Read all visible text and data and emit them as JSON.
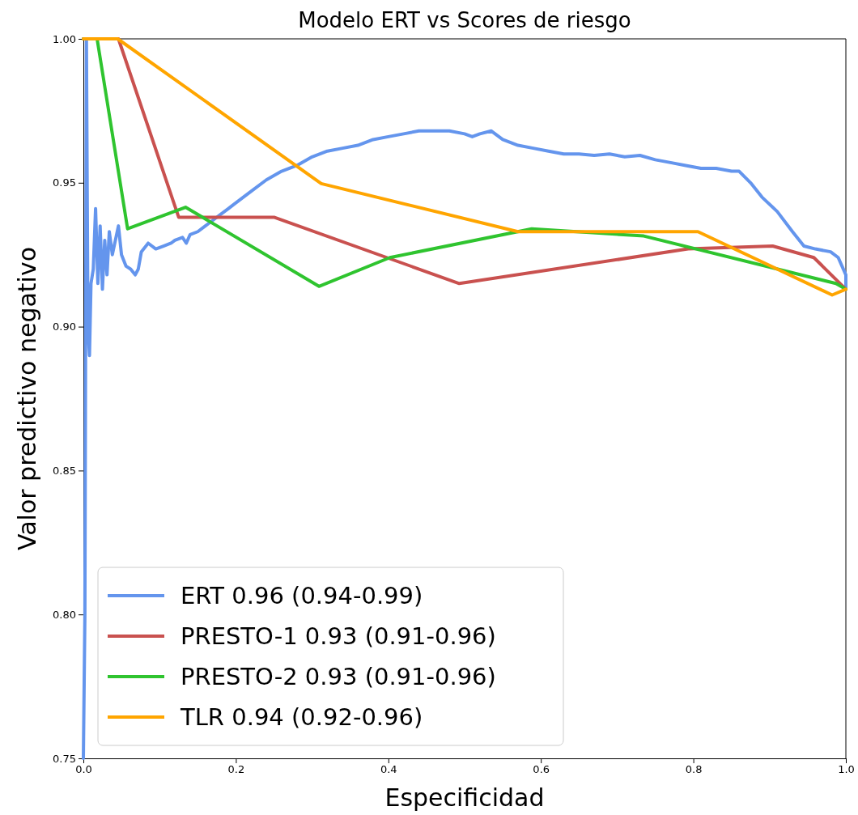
{
  "chart_data": {
    "type": "line",
    "title": "Modelo ERT vs Scores de riesgo",
    "xlabel": "Especificidad",
    "ylabel": "Valor predictivo negativo",
    "xlim": [
      0,
      1
    ],
    "ylim": [
      0.75,
      1.0
    ],
    "xticks": [
      {
        "value": 0,
        "label": "0.0"
      },
      0.2,
      0.4,
      0.6,
      0.8,
      {
        "value": 1,
        "label": "1.0"
      }
    ],
    "yticks": [
      0.75,
      {
        "value": 0.8,
        "label": "0.80"
      },
      0.85,
      {
        "value": 0.9,
        "label": "0.90"
      },
      0.95,
      {
        "value": 1.0,
        "label": "1.00"
      }
    ],
    "grid": false,
    "legend": "bottom left",
    "marker": "none",
    "line_style": "solid",
    "series": [
      {
        "name": "ERT 0.96 (0.94-0.99)",
        "color": "#6495ed",
        "x": [
          0,
          0.002,
          0.004,
          0.006,
          0.008,
          0.01,
          0.013,
          0.016,
          0.019,
          0.022,
          0.025,
          0.028,
          0.031,
          0.034,
          0.038,
          0.042,
          0.046,
          0.05,
          0.056,
          0.062,
          0.068,
          0.072,
          0.076,
          0.085,
          0.095,
          0.105,
          0.115,
          0.12,
          0.13,
          0.135,
          0.14,
          0.15,
          0.16,
          0.17,
          0.18,
          0.19,
          0.2,
          0.22,
          0.24,
          0.26,
          0.28,
          0.3,
          0.32,
          0.34,
          0.36,
          0.38,
          0.4,
          0.42,
          0.44,
          0.46,
          0.48,
          0.5,
          0.51,
          0.52,
          0.535,
          0.55,
          0.57,
          0.59,
          0.61,
          0.63,
          0.65,
          0.67,
          0.69,
          0.71,
          0.73,
          0.75,
          0.77,
          0.79,
          0.81,
          0.83,
          0.85,
          0.86,
          0.875,
          0.89,
          0.91,
          0.93,
          0.945,
          0.96,
          0.98,
          0.99,
          1.0,
          1.0
        ],
        "values": [
          0.75,
          0.8,
          1.0,
          0.9,
          0.89,
          0.915,
          0.92,
          0.941,
          0.915,
          0.935,
          0.913,
          0.93,
          0.918,
          0.933,
          0.925,
          0.93,
          0.935,
          0.925,
          0.921,
          0.92,
          0.918,
          0.92,
          0.926,
          0.929,
          0.927,
          0.928,
          0.929,
          0.93,
          0.931,
          0.929,
          0.932,
          0.933,
          0.935,
          0.937,
          0.939,
          0.941,
          0.943,
          0.947,
          0.951,
          0.954,
          0.956,
          0.959,
          0.961,
          0.962,
          0.963,
          0.965,
          0.966,
          0.967,
          0.968,
          0.968,
          0.968,
          0.967,
          0.966,
          0.967,
          0.968,
          0.965,
          0.963,
          0.962,
          0.961,
          0.96,
          0.96,
          0.9595,
          0.96,
          0.959,
          0.9595,
          0.958,
          0.957,
          0.956,
          0.955,
          0.955,
          0.954,
          0.954,
          0.95,
          0.945,
          0.94,
          0.933,
          0.928,
          0.927,
          0.926,
          0.924,
          0.918,
          0.913
        ]
      },
      {
        "name": "PRESTO-1 0.93 (0.91-0.96)",
        "color": "#c9514f",
        "x": [
          0,
          0.046,
          0.125,
          0.25,
          0.493,
          0.793,
          0.904,
          0.958,
          1.0
        ],
        "values": [
          1.0,
          1.0,
          0.938,
          0.938,
          0.915,
          0.927,
          0.928,
          0.924,
          0.913
        ]
      },
      {
        "name": "PRESTO-2 0.93 (0.91-0.96)",
        "color": "#2fc42f",
        "x": [
          0,
          0.018,
          0.058,
          0.134,
          0.309,
          0.402,
          0.588,
          0.735,
          0.987,
          1.0
        ],
        "values": [
          1.0,
          1.0,
          0.934,
          0.9415,
          0.914,
          0.924,
          0.934,
          0.9315,
          0.915,
          0.913
        ]
      },
      {
        "name": "TLR 0.94 (0.92-0.96)",
        "color": "#ffa500",
        "x": [
          0,
          0.045,
          0.312,
          0.57,
          0.806,
          0.982,
          1.0
        ],
        "values": [
          1.0,
          1.0,
          0.9497,
          0.933,
          0.933,
          0.911,
          0.913
        ]
      }
    ]
  }
}
